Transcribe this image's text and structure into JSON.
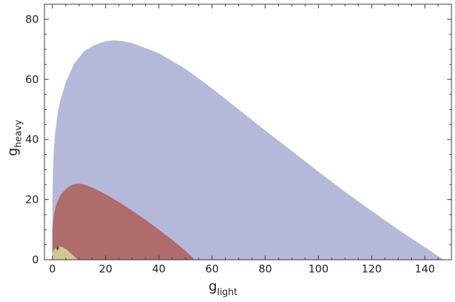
{
  "chart_data": {
    "type": "area",
    "title": "",
    "xlabel": {
      "base": "g",
      "sub": "light"
    },
    "ylabel": {
      "base": "g",
      "sub": "heavy"
    },
    "xlim": [
      -3,
      150
    ],
    "ylim": [
      0,
      85
    ],
    "x_ticks": [
      0,
      20,
      40,
      60,
      80,
      100,
      120,
      140
    ],
    "x_minor_step": 5,
    "y_ticks": [
      0,
      20,
      40,
      60,
      80
    ],
    "y_minor_step": 5,
    "grid": false,
    "legend": "none",
    "marker": {
      "symbol": "*",
      "x": 1.9,
      "y": 3.4
    },
    "regions": [
      {
        "color": "#b5b9d9",
        "outline": [
          [
            0,
            0
          ],
          [
            0,
            20
          ],
          [
            0.2,
            30
          ],
          [
            0.5,
            36
          ],
          [
            1,
            42
          ],
          [
            2,
            49
          ],
          [
            3,
            53
          ],
          [
            5,
            59
          ],
          [
            8,
            65
          ],
          [
            12,
            69.5
          ],
          [
            16,
            71.5
          ],
          [
            20,
            72.7
          ],
          [
            23,
            73
          ],
          [
            26,
            72.8
          ],
          [
            30,
            72.1
          ],
          [
            40,
            68.7
          ],
          [
            50,
            63.5
          ],
          [
            60,
            57
          ],
          [
            70,
            50
          ],
          [
            80,
            43
          ],
          [
            90,
            36.2
          ],
          [
            100,
            29.3
          ],
          [
            110,
            22.6
          ],
          [
            120,
            16.2
          ],
          [
            130,
            10
          ],
          [
            140,
            4.2
          ],
          [
            147,
            0
          ],
          [
            0,
            0
          ]
        ]
      },
      {
        "color": "#b06b6b",
        "outline": [
          [
            0,
            0
          ],
          [
            0,
            10
          ],
          [
            0.3,
            13
          ],
          [
            0.8,
            16
          ],
          [
            1.5,
            18.5
          ],
          [
            3,
            21.5
          ],
          [
            5,
            23.5
          ],
          [
            7,
            24.8
          ],
          [
            9,
            25.3
          ],
          [
            11,
            25.2
          ],
          [
            13,
            24.7
          ],
          [
            16,
            23.6
          ],
          [
            20,
            21.8
          ],
          [
            25,
            19.2
          ],
          [
            30,
            16.3
          ],
          [
            35,
            13.3
          ],
          [
            40,
            10
          ],
          [
            45,
            6.6
          ],
          [
            50,
            3
          ],
          [
            53.5,
            0
          ],
          [
            0,
            0
          ]
        ]
      },
      {
        "color": "#cec98f",
        "outline": [
          [
            0,
            0
          ],
          [
            0,
            2
          ],
          [
            0.5,
            3.2
          ],
          [
            1.2,
            4
          ],
          [
            2,
            4.4
          ],
          [
            3,
            4.4
          ],
          [
            4,
            4.1
          ],
          [
            5.5,
            3.3
          ],
          [
            7,
            2.1
          ],
          [
            8.5,
            0.9
          ],
          [
            9.7,
            0
          ],
          [
            0,
            0
          ]
        ]
      }
    ]
  }
}
